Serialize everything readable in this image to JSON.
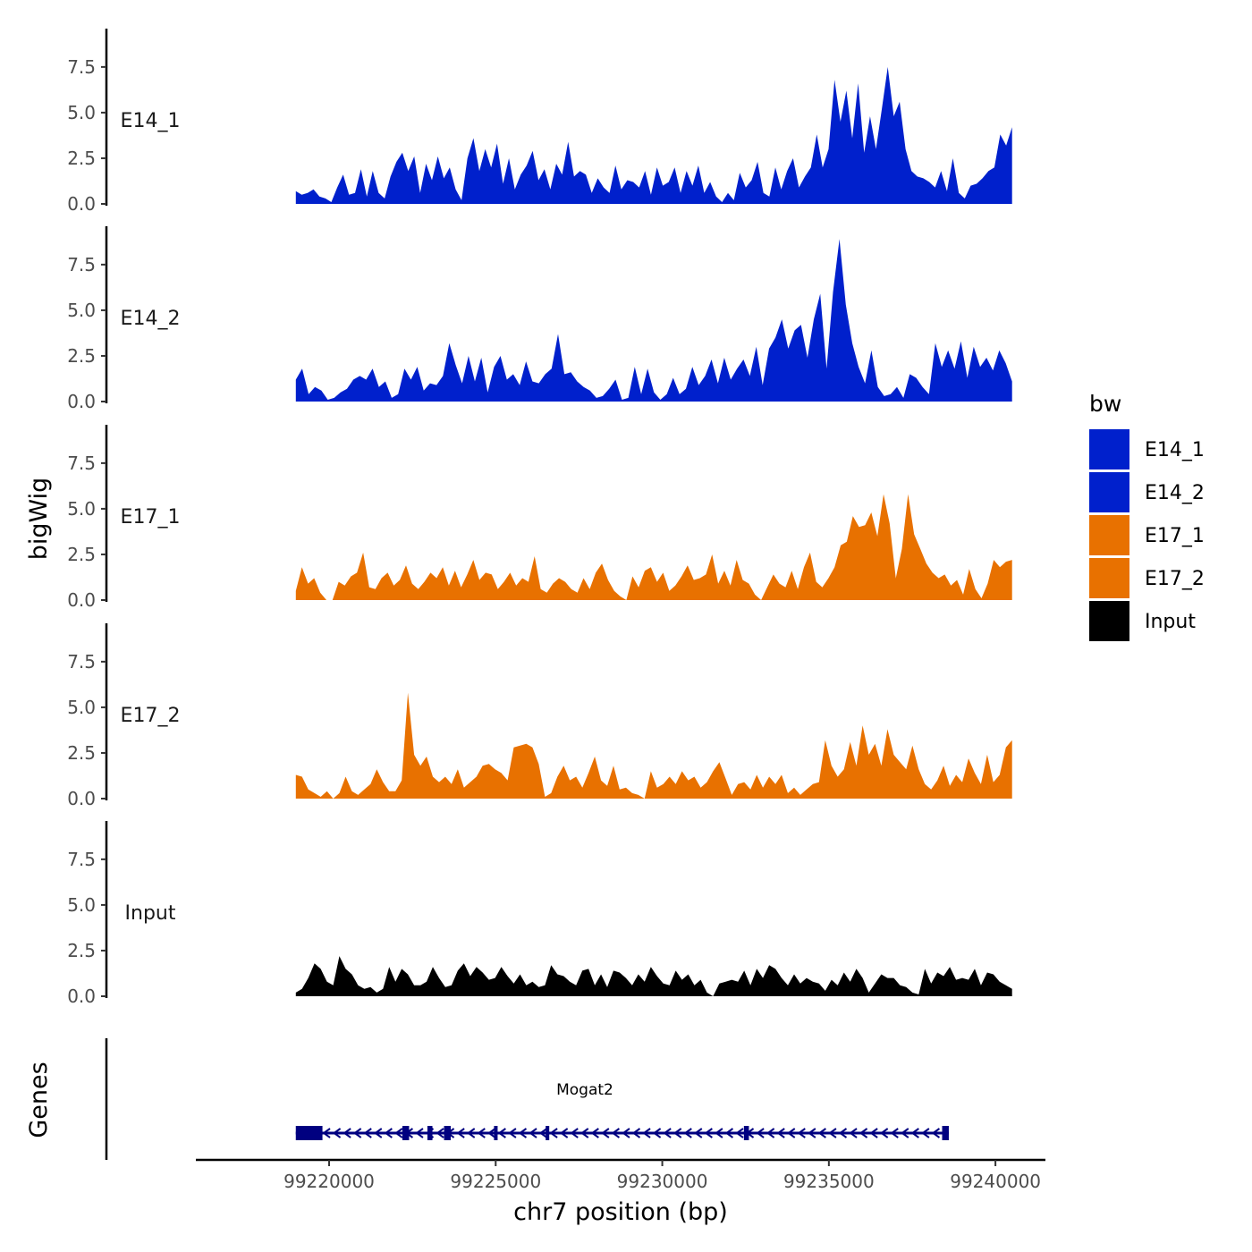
{
  "chart_data": {
    "type": "area",
    "ylabel": "bigWig",
    "xlabel": "chr7 position (bp)",
    "xlim": [
      99216000,
      99241500
    ],
    "ylim": [
      0,
      9.6
    ],
    "yticks": [
      0.0,
      2.5,
      5.0,
      7.5
    ],
    "ytick_labels": [
      "0.0",
      "2.5",
      "5.0",
      "7.5"
    ],
    "xticks": [
      99220000,
      99225000,
      99230000,
      99235000,
      99240000
    ],
    "xtick_labels": [
      "99220000",
      "99225000",
      "99230000",
      "99235000",
      "99240000"
    ],
    "data_range": [
      99219000,
      99240500
    ],
    "tracks": [
      {
        "name": "E14_1",
        "color": "#0020CC",
        "values": [
          0.7,
          0.5,
          0.6,
          0.8,
          0.4,
          0.3,
          0.1,
          0.9,
          1.6,
          0.5,
          0.6,
          1.9,
          0.4,
          1.8,
          0.6,
          0.3,
          1.5,
          2.3,
          2.8,
          1.8,
          2.6,
          0.6,
          2.2,
          1.3,
          2.6,
          1.4,
          2.0,
          0.8,
          0.2,
          2.5,
          3.6,
          1.8,
          3.0,
          2.0,
          3.3,
          1.1,
          2.5,
          0.8,
          1.6,
          2.1,
          2.9,
          1.3,
          1.9,
          0.8,
          2.2,
          1.6,
          3.4,
          1.5,
          1.8,
          1.6,
          0.6,
          1.4,
          0.9,
          0.6,
          2.1,
          0.8,
          1.3,
          1.2,
          0.9,
          1.8,
          0.5,
          2.0,
          1.0,
          1.2,
          2.0,
          0.6,
          1.8,
          1.0,
          2.1,
          0.6,
          1.2,
          0.4,
          0.1,
          0.6,
          0.2,
          1.7,
          0.9,
          1.3,
          2.3,
          0.6,
          0.4,
          2.0,
          0.8,
          1.8,
          2.5,
          0.9,
          1.5,
          2.0,
          3.8,
          2.0,
          3.0,
          6.8,
          4.5,
          6.2,
          3.6,
          6.6,
          2.8,
          4.8,
          3.0,
          5.2,
          7.5,
          4.8,
          5.6,
          3.0,
          1.8,
          1.5,
          1.4,
          1.2,
          0.9,
          1.8,
          0.7,
          2.5,
          0.6,
          0.3,
          1.0,
          1.1,
          1.4,
          1.8,
          2.0,
          3.8,
          3.2,
          4.2
        ]
      },
      {
        "name": "E14_2",
        "color": "#0020CC",
        "values": [
          1.2,
          1.8,
          0.4,
          0.8,
          0.6,
          0.1,
          0.2,
          0.5,
          0.7,
          1.2,
          1.4,
          1.2,
          1.8,
          0.8,
          1.1,
          0.2,
          0.4,
          1.8,
          1.2,
          1.9,
          0.6,
          1.0,
          0.9,
          1.4,
          3.2,
          2.0,
          1.0,
          2.5,
          1.1,
          2.4,
          0.5,
          1.9,
          2.5,
          1.2,
          1.5,
          0.9,
          2.2,
          1.1,
          1.0,
          1.5,
          1.8,
          3.7,
          1.5,
          1.6,
          1.1,
          0.8,
          0.6,
          0.2,
          0.3,
          0.7,
          1.2,
          0.1,
          0.2,
          1.9,
          0.4,
          1.8,
          0.5,
          0.1,
          0.4,
          1.3,
          0.4,
          0.7,
          1.9,
          0.9,
          1.4,
          2.3,
          1.0,
          2.4,
          1.2,
          1.8,
          2.3,
          1.4,
          3.0,
          0.9,
          2.9,
          3.5,
          4.5,
          2.9,
          3.9,
          4.2,
          2.4,
          4.5,
          5.9,
          1.8,
          6.0,
          8.9,
          5.3,
          3.2,
          1.9,
          1.0,
          2.8,
          0.8,
          0.3,
          0.4,
          0.8,
          0.2,
          1.5,
          1.3,
          0.8,
          0.4,
          3.2,
          1.9,
          2.8,
          1.8,
          3.3,
          1.3,
          3.0,
          1.9,
          2.4,
          1.7,
          2.8,
          2.1,
          1.1
        ]
      },
      {
        "name": "E17_1",
        "color": "#E87100",
        "values": [
          0.5,
          1.8,
          0.9,
          1.2,
          0.4,
          0.0,
          0.0,
          1.0,
          0.8,
          1.3,
          1.5,
          2.6,
          0.7,
          0.6,
          1.2,
          1.5,
          0.8,
          1.1,
          1.9,
          0.9,
          0.6,
          1.0,
          1.5,
          1.2,
          1.8,
          0.8,
          1.6,
          0.7,
          1.4,
          2.2,
          1.1,
          1.5,
          1.4,
          0.6,
          1.0,
          1.5,
          0.8,
          1.2,
          1.0,
          2.4,
          0.6,
          0.4,
          0.9,
          1.2,
          1.0,
          0.6,
          0.4,
          1.2,
          0.6,
          1.5,
          2.0,
          1.1,
          0.5,
          0.2,
          0.0,
          1.3,
          0.7,
          1.6,
          1.8,
          1.0,
          1.5,
          0.5,
          0.8,
          1.3,
          1.9,
          1.1,
          1.2,
          1.4,
          2.5,
          0.9,
          1.6,
          0.8,
          2.2,
          1.1,
          0.9,
          0.3,
          0.0,
          0.7,
          1.4,
          0.9,
          0.7,
          1.6,
          0.6,
          1.8,
          2.6,
          1.0,
          0.7,
          1.2,
          1.8,
          3.0,
          3.2,
          4.6,
          4.0,
          4.1,
          4.8,
          3.5,
          5.8,
          4.2,
          1.2,
          2.8,
          5.8,
          3.6,
          2.8,
          2.0,
          1.5,
          1.2,
          1.4,
          0.8,
          1.1,
          0.3,
          1.7,
          0.6,
          0.1,
          0.9,
          2.2,
          1.8,
          2.1,
          2.2
        ]
      },
      {
        "name": "E17_2",
        "color": "#E87100",
        "values": [
          1.3,
          1.2,
          0.5,
          0.3,
          0.1,
          0.4,
          0.0,
          0.3,
          1.2,
          0.4,
          0.2,
          0.5,
          0.8,
          1.6,
          0.9,
          0.4,
          0.4,
          1.0,
          5.8,
          2.4,
          1.8,
          2.3,
          1.2,
          0.9,
          1.2,
          0.8,
          1.6,
          0.6,
          0.9,
          1.2,
          1.8,
          1.9,
          1.6,
          1.4,
          1.0,
          2.8,
          2.9,
          3.0,
          2.8,
          1.9,
          0.1,
          0.3,
          1.2,
          1.8,
          1.0,
          1.2,
          0.6,
          1.4,
          2.3,
          1.0,
          0.7,
          1.8,
          0.5,
          0.6,
          0.3,
          0.2,
          0.0,
          1.5,
          0.6,
          0.8,
          1.2,
          0.8,
          1.5,
          1.0,
          1.2,
          0.6,
          0.9,
          1.5,
          2.0,
          1.1,
          0.2,
          0.8,
          0.9,
          0.5,
          1.3,
          0.6,
          1.2,
          0.8,
          1.3,
          0.3,
          0.6,
          0.2,
          0.5,
          0.8,
          0.9,
          3.2,
          1.8,
          1.2,
          1.6,
          3.1,
          1.8,
          4.0,
          2.4,
          3.0,
          1.8,
          3.8,
          2.4,
          2.0,
          1.6,
          2.9,
          1.6,
          0.8,
          0.5,
          1.0,
          1.8,
          0.7,
          1.3,
          0.9,
          2.2,
          1.4,
          0.8,
          2.4,
          0.9,
          1.3,
          2.8,
          3.2
        ]
      },
      {
        "name": "Input",
        "color": "#000000",
        "values": [
          0.2,
          0.4,
          1.0,
          1.8,
          1.5,
          0.8,
          0.6,
          2.2,
          1.5,
          1.2,
          0.6,
          0.4,
          0.5,
          0.2,
          0.4,
          1.6,
          0.8,
          1.5,
          1.2,
          0.6,
          0.6,
          0.8,
          1.6,
          1.0,
          0.5,
          0.6,
          1.4,
          1.8,
          1.1,
          1.6,
          1.3,
          0.9,
          1.0,
          1.6,
          1.1,
          0.7,
          1.2,
          0.6,
          0.8,
          0.5,
          0.6,
          1.7,
          1.2,
          1.1,
          0.8,
          0.6,
          1.4,
          1.5,
          0.6,
          1.2,
          0.5,
          1.4,
          1.3,
          1.0,
          0.6,
          1.2,
          0.8,
          1.6,
          1.1,
          0.7,
          0.6,
          1.4,
          0.9,
          1.2,
          0.6,
          0.9,
          0.2,
          0.0,
          0.7,
          0.8,
          0.9,
          0.8,
          1.4,
          0.6,
          1.5,
          1.0,
          1.7,
          1.5,
          1.0,
          0.6,
          1.2,
          0.7,
          1.0,
          0.8,
          0.7,
          0.3,
          0.9,
          0.6,
          1.3,
          0.8,
          1.5,
          1.0,
          0.2,
          0.7,
          1.2,
          1.0,
          1.0,
          0.6,
          0.5,
          0.2,
          0.1,
          1.5,
          0.7,
          1.3,
          1.1,
          1.6,
          0.9,
          1.0,
          0.9,
          1.5,
          0.6,
          1.3,
          1.2,
          0.8,
          0.6,
          0.4
        ]
      }
    ],
    "legend": {
      "title": "bw",
      "entries": [
        {
          "label": "E14_1",
          "color": "#0020CC"
        },
        {
          "label": "E14_2",
          "color": "#0020CC"
        },
        {
          "label": "E17_1",
          "color": "#E87100"
        },
        {
          "label": "E17_2",
          "color": "#E87100"
        },
        {
          "label": "Input",
          "color": "#000000"
        }
      ]
    },
    "genes_track": {
      "label": "Genes",
      "color": "#000080",
      "gene": {
        "name": "Mogat2",
        "start": 99219000,
        "end": 99238600,
        "strand": "-",
        "exons": [
          [
            99219000,
            99219800
          ],
          [
            99222200,
            99222400
          ],
          [
            99222950,
            99223100
          ],
          [
            99223450,
            99223650
          ],
          [
            99224950,
            99225020
          ],
          [
            99226500,
            99226600
          ],
          [
            99232450,
            99232600
          ],
          [
            99238400,
            99238600
          ]
        ]
      }
    }
  }
}
